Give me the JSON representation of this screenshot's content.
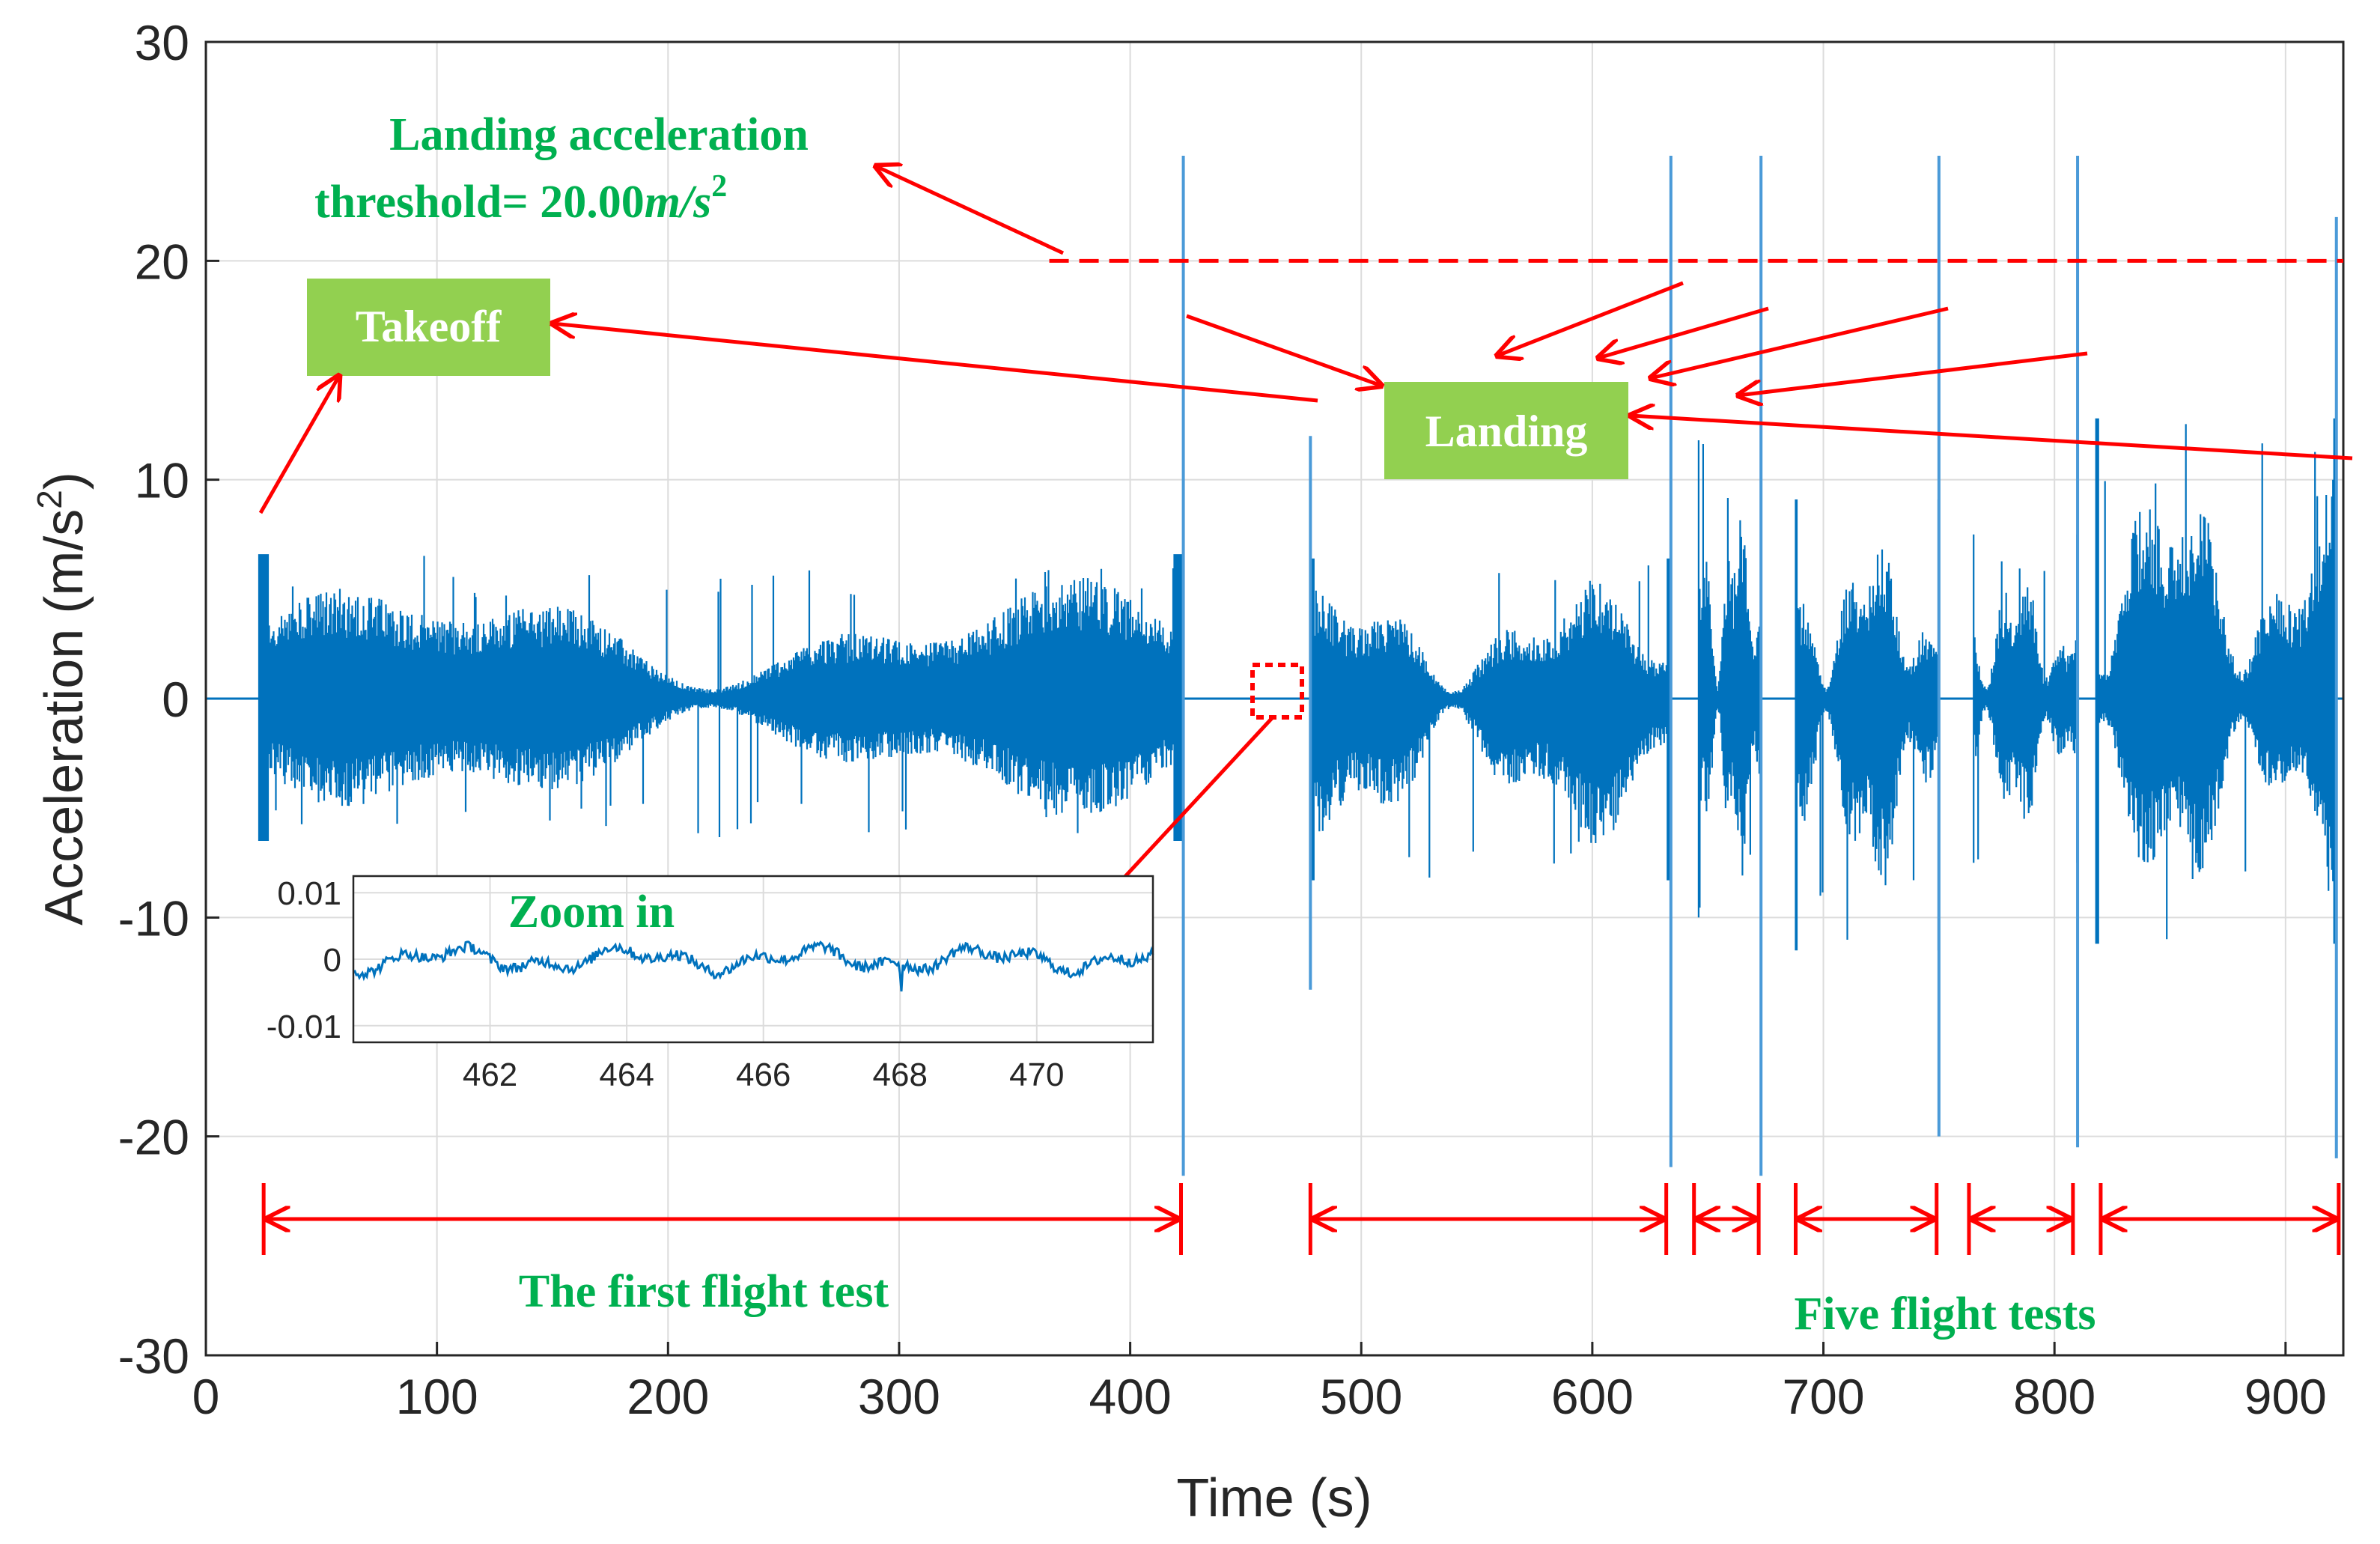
{
  "chart_data": [
    {
      "type": "line",
      "role": "main",
      "xlabel": "Time (s)",
      "ylabel": "Acceleration (m/s²)",
      "ylabel_base": "Acceleration (m/s",
      "ylabel_sup": "2",
      "ylabel_close": ")",
      "xlim": [
        0,
        925
      ],
      "ylim": [
        -30,
        30
      ],
      "xticks": [
        0,
        100,
        200,
        300,
        400,
        500,
        600,
        700,
        800,
        900
      ],
      "yticks": [
        -30,
        -20,
        -10,
        0,
        10,
        20,
        30
      ],
      "grid": true,
      "threshold": 20.0,
      "threshold_range": [
        365,
        925
      ],
      "series_color": "#0072bd",
      "segments": [
        {
          "start": 23,
          "end": 423,
          "min": -6.5,
          "max": 6.6
        },
        {
          "start": 478,
          "end": 634,
          "min": -8.3,
          "max": 6.4
        },
        {
          "start": 646,
          "end": 673,
          "min": -10.0,
          "max": 11.8
        },
        {
          "start": 688,
          "end": 750,
          "min": -11.5,
          "max": 9.1
        },
        {
          "start": 765,
          "end": 810,
          "min": -7.5,
          "max": 7.5
        },
        {
          "start": 818,
          "end": 922,
          "min": -11.2,
          "max": 12.8
        }
      ],
      "spikes": [
        {
          "t": 423,
          "min": -21.8,
          "max": 24.8
        },
        {
          "t": 478,
          "min": -13.3,
          "max": 12.0
        },
        {
          "t": 634,
          "min": -21.4,
          "max": 24.8
        },
        {
          "t": 673,
          "min": -21.8,
          "max": 24.8
        },
        {
          "t": 750,
          "min": -20.0,
          "max": 24.8
        },
        {
          "t": 810,
          "min": -20.5,
          "max": 24.8
        },
        {
          "t": 922,
          "min": -21.0,
          "max": 22.0
        }
      ],
      "flight_ranges": [
        [
          25,
          422
        ],
        [
          478,
          632
        ],
        [
          644,
          672
        ],
        [
          688,
          749
        ],
        [
          763,
          808
        ],
        [
          820,
          923
        ]
      ]
    },
    {
      "type": "line",
      "role": "inset",
      "title": "Zoom in",
      "xlim": [
        460,
        471.7
      ],
      "ylim": [
        -0.0125,
        0.0125
      ],
      "xticks": [
        462,
        464,
        466,
        468,
        470
      ],
      "yticks": [
        0.01,
        0,
        -0.01
      ],
      "ytick_labels": [
        "0.01",
        "0",
        "-0.01"
      ],
      "grid": true
    }
  ],
  "annotations": {
    "threshold_line1": "Landing acceleration",
    "threshold_line2_prefix": "threshold= ",
    "threshold_value": "20.00",
    "threshold_unit": "m/s",
    "threshold_unit_sup": "2",
    "takeoff": "Takeoff",
    "landing": "Landing",
    "first_test": "The first flight test",
    "five_tests": "Five flight tests"
  },
  "colors": {
    "signal": "#0072bd",
    "annotation_arrow": "#ff0000",
    "label_green": "#00b050",
    "box_green": "#92d050",
    "grid": "#dcdcdc",
    "axis": "#262626"
  }
}
